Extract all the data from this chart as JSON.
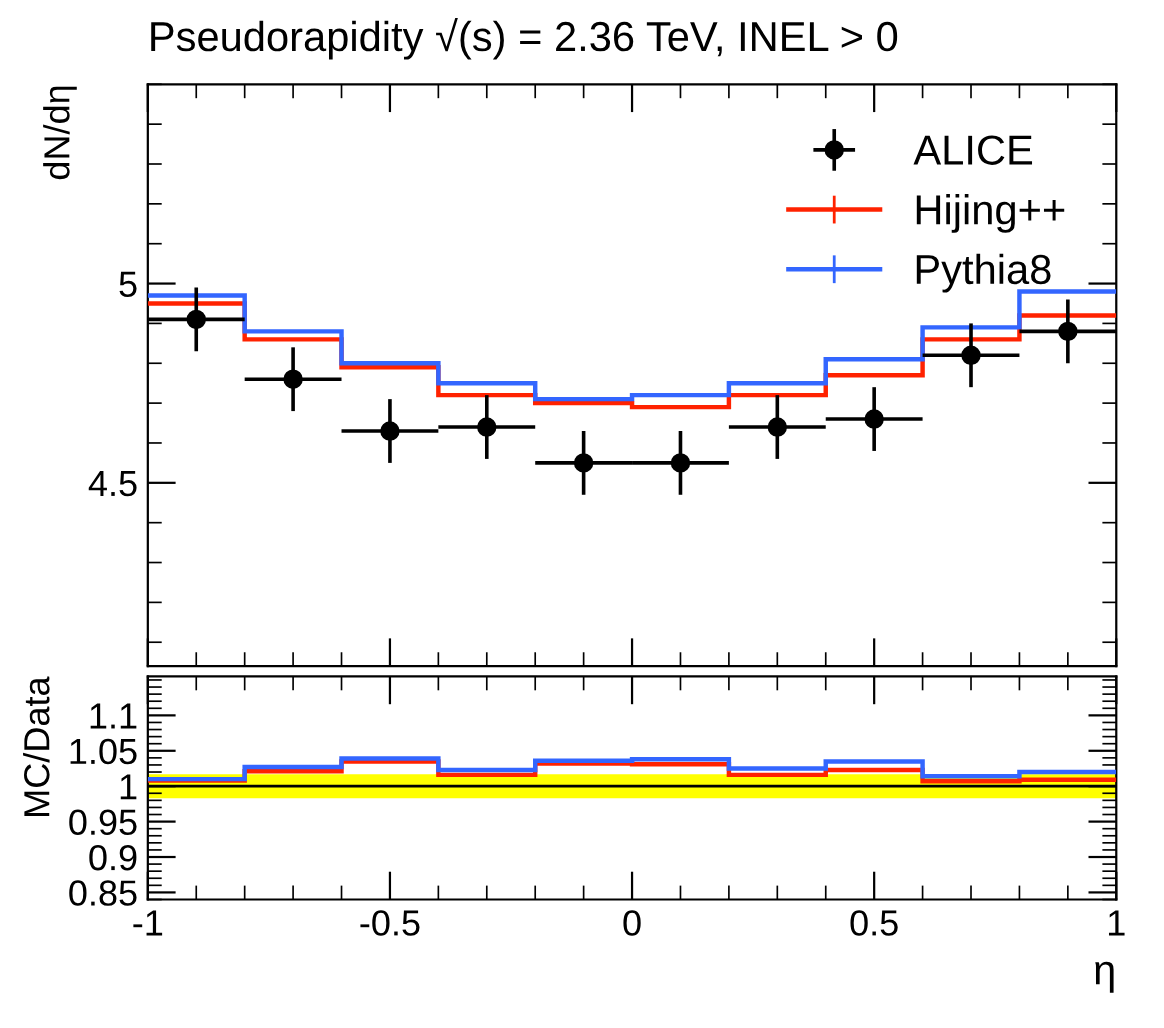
{
  "chart_data": [
    {
      "type": "histogram",
      "title": "Pseudorapidity √(s) = 2.36 TeV, INEL > 0",
      "ylabel": "dN/dη",
      "bins": [
        -1,
        -0.8,
        -0.6,
        -0.4,
        -0.2,
        0,
        0.2,
        0.4,
        0.6,
        0.8,
        1
      ],
      "series": [
        {
          "name": "ALICE",
          "type": "scatter",
          "color": "#000000",
          "x": [
            -0.9,
            -0.7,
            -0.5,
            -0.3,
            -0.1,
            0.1,
            0.3,
            0.5,
            0.7,
            0.9
          ],
          "values": [
            4.91,
            4.76,
            4.63,
            4.64,
            4.55,
            4.55,
            4.64,
            4.66,
            4.82,
            4.88
          ],
          "errors": [
            0.08,
            0.08,
            0.08,
            0.08,
            0.08,
            0.08,
            0.08,
            0.08,
            0.08,
            0.08
          ],
          "xerrors": [
            0.1,
            0.1,
            0.1,
            0.1,
            0.1,
            0.1,
            0.1,
            0.1,
            0.1,
            0.1
          ],
          "marker": "circle"
        },
        {
          "name": "Hijing++",
          "color": "#ff2200",
          "values": [
            4.95,
            4.86,
            4.79,
            4.72,
            4.7,
            4.69,
            4.72,
            4.77,
            4.86,
            4.92
          ]
        },
        {
          "name": "Pythia8",
          "color": "#3366ff",
          "values": [
            4.97,
            4.88,
            4.8,
            4.75,
            4.71,
            4.72,
            4.75,
            4.81,
            4.89,
            4.98
          ]
        }
      ],
      "xlim": [
        -1,
        1
      ],
      "xticks": [
        -1,
        -0.5,
        0,
        0.5,
        1
      ],
      "ylim": [
        4.04,
        5.5
      ],
      "yticks": [
        4.5,
        5
      ],
      "tick_labels": "y",
      "legend": "top right",
      "grid": false
    },
    {
      "type": "histogram",
      "xlabel": "η",
      "ylabel": "MC/Data",
      "bins": [
        -1,
        -0.8,
        -0.6,
        -0.4,
        -0.2,
        0,
        0.2,
        0.4,
        0.6,
        0.8,
        1
      ],
      "series": [
        {
          "color": "#ff2200",
          "values": [
            1.008,
            1.021,
            1.035,
            1.016,
            1.032,
            1.031,
            1.016,
            1.023,
            1.007,
            1.009
          ]
        },
        {
          "color": "#3366ff",
          "values": [
            1.01,
            1.027,
            1.039,
            1.023,
            1.036,
            1.038,
            1.025,
            1.035,
            1.014,
            1.02
          ]
        }
      ],
      "bands": [
        {
          "axis": "y",
          "from": 0.983,
          "to": 1.017,
          "color": "#ffff00"
        }
      ],
      "ref_lines": [
        {
          "axis": "y",
          "value": 1,
          "color": "#000000"
        }
      ],
      "xlim": [
        -1,
        1
      ],
      "xticks": [
        -1,
        -0.5,
        0,
        0.5,
        1
      ],
      "ylim": [
        0.84,
        1.155
      ],
      "yticks": [
        0.85,
        0.9,
        0.95,
        1,
        1.05,
        1.1
      ],
      "grid": false
    }
  ]
}
